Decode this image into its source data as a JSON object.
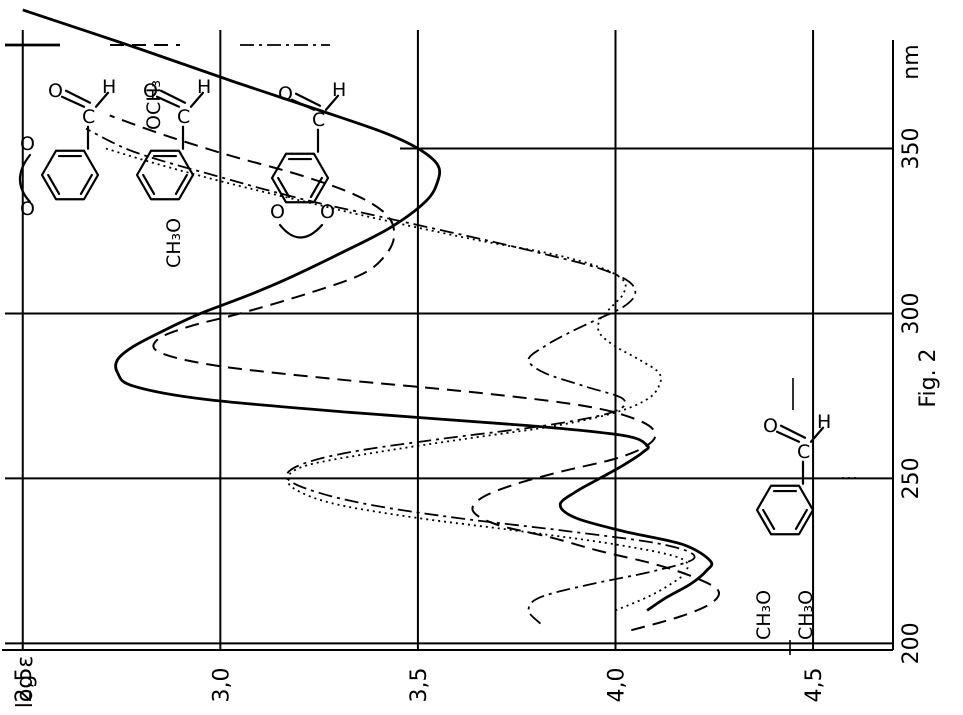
{
  "chart_data": {
    "type": "line",
    "orientation": "rotated-90-counterclockwise",
    "figure_label": "Fig. 2",
    "ylabel": "log ε",
    "xlabel": "nm",
    "xlim": [
      198,
      395
    ],
    "ylim": [
      2.45,
      4.72
    ],
    "x_ticks": [
      {
        "value": 200,
        "label": "200"
      },
      {
        "value": 250,
        "label": "250"
      },
      {
        "value": 300,
        "label": "300"
      },
      {
        "value": 350,
        "label": "350"
      }
    ],
    "y_ticks": [
      {
        "value": 4.5,
        "label": "4,5"
      },
      {
        "value": 4.0,
        "label": "4,0"
      },
      {
        "value": 3.5,
        "label": "3,5"
      },
      {
        "value": 3.0,
        "label": "3,0"
      },
      {
        "value": 2.5,
        "label": "2,5"
      }
    ],
    "grid": true,
    "series": [
      {
        "compound": "2,3-methylenedioxybenzaldehyde",
        "line_style": "solid",
        "x": [
          210,
          214,
          218,
          222,
          225,
          230,
          234,
          238,
          242,
          246,
          250,
          254,
          258,
          260,
          263,
          266,
          270,
          274,
          278,
          282,
          286,
          290,
          295,
          300,
          305,
          310,
          318,
          326,
          334,
          340,
          345,
          350,
          355,
          362,
          370,
          380,
          392
        ],
        "y": [
          4.08,
          4.13,
          4.19,
          4.23,
          4.24,
          4.17,
          4.02,
          3.9,
          3.86,
          3.9,
          3.96,
          4.02,
          4.07,
          4.08,
          4.02,
          3.78,
          3.33,
          2.96,
          2.78,
          2.74,
          2.74,
          2.78,
          2.86,
          2.95,
          3.06,
          3.16,
          3.3,
          3.43,
          3.52,
          3.55,
          3.55,
          3.5,
          3.41,
          3.24,
          3.04,
          2.8,
          2.5
        ]
      },
      {
        "compound": "2-methoxy-3-methoxybenzaldehyde",
        "line_style": "dashed",
        "x": [
          204,
          208,
          212,
          216,
          220,
          224,
          228,
          232,
          236,
          240,
          244,
          248,
          252,
          256,
          260,
          264,
          268,
          272,
          276,
          280,
          284,
          288,
          292,
          296,
          300,
          306,
          312,
          318,
          324,
          330,
          336,
          342,
          348,
          354,
          360
        ],
        "y": [
          4.04,
          4.16,
          4.24,
          4.26,
          4.2,
          4.1,
          3.96,
          3.84,
          3.7,
          3.64,
          3.66,
          3.74,
          3.86,
          4.0,
          4.08,
          4.1,
          4.05,
          3.92,
          3.65,
          3.3,
          3.0,
          2.85,
          2.84,
          2.92,
          3.05,
          3.22,
          3.36,
          3.42,
          3.44,
          3.42,
          3.34,
          3.2,
          3.02,
          2.86,
          2.72
        ]
      },
      {
        "compound": "3,4-methylenedioxybenzaldehyde",
        "line_style": "dash-dot",
        "x": [
          206,
          210,
          214,
          218,
          222,
          226,
          230,
          234,
          238,
          242,
          246,
          250,
          254,
          258,
          262,
          266,
          270,
          274,
          278,
          282,
          286,
          290,
          294,
          298,
          302,
          306,
          310,
          314,
          318,
          322,
          326,
          330,
          334,
          338,
          342,
          346,
          350,
          356
        ],
        "y": [
          3.81,
          3.78,
          3.81,
          3.94,
          4.1,
          4.2,
          4.12,
          3.88,
          3.6,
          3.38,
          3.24,
          3.17,
          3.2,
          3.33,
          3.56,
          3.82,
          3.99,
          4.02,
          3.92,
          3.82,
          3.78,
          3.82,
          3.88,
          3.95,
          4.02,
          4.05,
          4.03,
          3.95,
          3.82,
          3.68,
          3.53,
          3.38,
          3.23,
          3.1,
          2.98,
          2.86,
          2.76,
          2.66
        ]
      },
      {
        "compound": "3,4-dimethoxybenzaldehyde",
        "line_style": "dotted",
        "x": [
          210,
          214,
          218,
          222,
          226,
          230,
          234,
          238,
          242,
          246,
          250,
          254,
          258,
          262,
          266,
          270,
          274,
          278,
          282,
          286,
          290,
          294,
          298,
          302,
          306,
          310,
          314,
          318,
          322,
          326,
          330,
          334,
          338,
          342,
          346,
          350
        ],
        "y": [
          4.0,
          4.08,
          4.14,
          4.18,
          4.16,
          4.0,
          3.76,
          3.5,
          3.3,
          3.2,
          3.17,
          3.22,
          3.4,
          3.62,
          3.85,
          4.0,
          4.08,
          4.11,
          4.11,
          4.06,
          4.0,
          3.96,
          3.96,
          3.99,
          4.02,
          4.02,
          3.96,
          3.84,
          3.66,
          3.5,
          3.35,
          3.21,
          3.07,
          2.94,
          2.82,
          2.71
        ]
      }
    ]
  },
  "structure_labels": {
    "aldehyde_o": "O",
    "aldehyde_c": "C",
    "aldehyde_h": "H",
    "ring_o": "O",
    "methoxy": "CH₃O",
    "methoxy_ortho": "OCH₃"
  },
  "colors": {
    "ink": "#000000",
    "background": "#ffffff"
  }
}
